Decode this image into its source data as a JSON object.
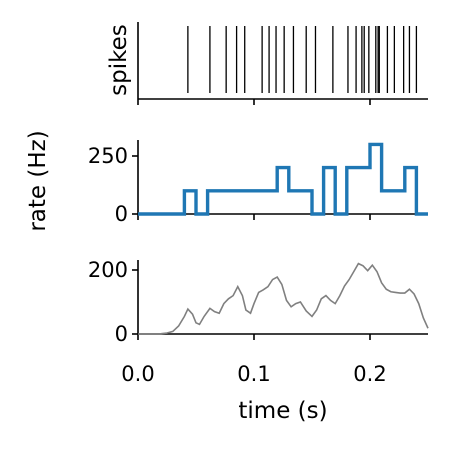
{
  "chart_data": [
    {
      "type": "event-raster",
      "ylabel": "spikes",
      "xlim": [
        0,
        0.25
      ],
      "spike_times": [
        0.043,
        0.062,
        0.076,
        0.085,
        0.092,
        0.107,
        0.113,
        0.119,
        0.126,
        0.134,
        0.145,
        0.153,
        0.168,
        0.181,
        0.188,
        0.193,
        0.195,
        0.199,
        0.205,
        0.207,
        0.208,
        0.215,
        0.221,
        0.229,
        0.234,
        0.24
      ]
    },
    {
      "type": "line",
      "style": "step",
      "ylabel": "rate (Hz)",
      "xlim": [
        0,
        0.25
      ],
      "ylim": [
        0,
        320
      ],
      "yticks": [
        0,
        250
      ],
      "ytick_labels": [
        "0",
        "250"
      ],
      "bin_edges": [
        0,
        0.04,
        0.05,
        0.06,
        0.12,
        0.13,
        0.15,
        0.16,
        0.17,
        0.18,
        0.2,
        0.21,
        0.23,
        0.24,
        0.25
      ],
      "values": [
        0,
        100,
        0,
        100,
        200,
        100,
        0,
        200,
        0,
        200,
        300,
        100,
        200,
        0
      ]
    },
    {
      "type": "line",
      "xlabel": "time (s)",
      "xlim": [
        0,
        0.25
      ],
      "ylim": [
        0,
        240
      ],
      "yticks": [
        0,
        200
      ],
      "ytick_labels": [
        "0",
        "200"
      ],
      "xticks": [
        0,
        0.1,
        0.2
      ],
      "xtick_labels": [
        "0.0",
        "0.1",
        "0.2"
      ],
      "x": [
        0,
        0.01,
        0.02,
        0.025,
        0.03,
        0.035,
        0.04,
        0.043,
        0.047,
        0.05,
        0.053,
        0.057,
        0.062,
        0.066,
        0.07,
        0.074,
        0.078,
        0.082,
        0.086,
        0.09,
        0.093,
        0.097,
        0.1,
        0.104,
        0.108,
        0.112,
        0.116,
        0.12,
        0.124,
        0.128,
        0.132,
        0.136,
        0.14,
        0.145,
        0.15,
        0.154,
        0.158,
        0.162,
        0.166,
        0.17,
        0.174,
        0.178,
        0.182,
        0.186,
        0.19,
        0.194,
        0.198,
        0.202,
        0.206,
        0.21,
        0.214,
        0.218,
        0.222,
        0.226,
        0.23,
        0.234,
        0.238,
        0.242,
        0.246,
        0.25
      ],
      "values": [
        0,
        0,
        1,
        3,
        8,
        25,
        55,
        78,
        62,
        35,
        30,
        55,
        80,
        70,
        65,
        95,
        110,
        120,
        148,
        120,
        75,
        65,
        95,
        130,
        138,
        148,
        170,
        178,
        155,
        105,
        85,
        95,
        100,
        72,
        55,
        75,
        110,
        120,
        105,
        95,
        120,
        150,
        170,
        195,
        220,
        213,
        198,
        215,
        195,
        160,
        140,
        132,
        130,
        128,
        128,
        140,
        125,
        95,
        50,
        18
      ]
    }
  ]
}
